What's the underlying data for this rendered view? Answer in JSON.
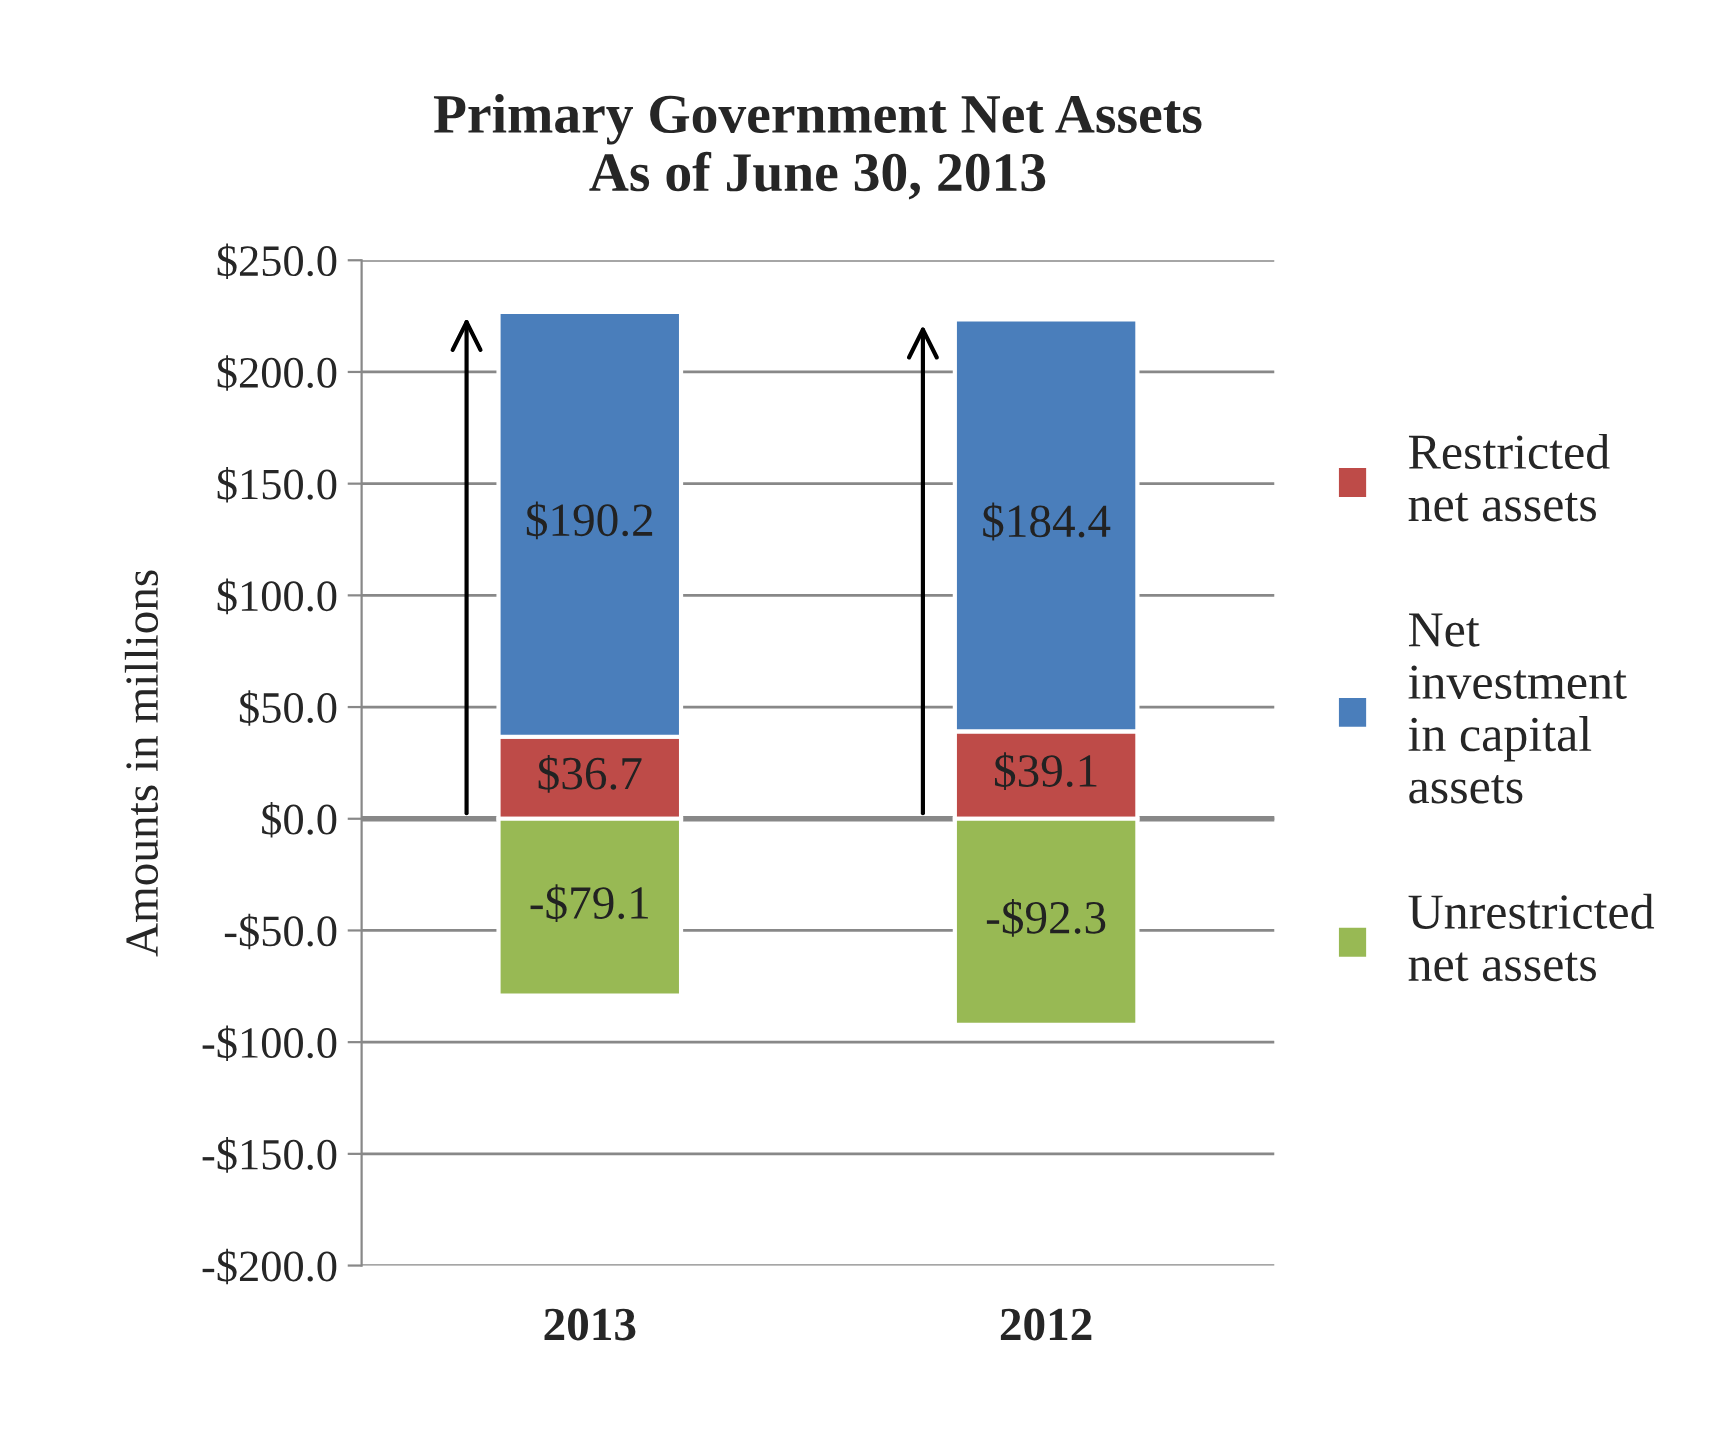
{
  "chart_data": {
    "type": "bar",
    "stacked": true,
    "title": "Primary Government Net Assets\nAs of June 30, 2013",
    "ylabel": "Amounts in millions",
    "categories": [
      "2013",
      "2012"
    ],
    "series": [
      {
        "name": "Restricted net assets",
        "color": "#be4b48",
        "values": [
          36.7,
          39.1
        ],
        "value_labels": [
          "$36.7",
          "$39.1"
        ]
      },
      {
        "name": "Net investment in capital assets",
        "color": "#4a7ebb",
        "values": [
          190.2,
          184.4
        ],
        "value_labels": [
          "$190.2",
          "$184.4"
        ]
      },
      {
        "name": "Unrestricted net assets",
        "color": "#98b954",
        "values": [
          -79.1,
          -92.3
        ],
        "value_labels": [
          "-$79.1",
          "-$92.3"
        ]
      }
    ],
    "ylim": [
      -200,
      250
    ],
    "yticks": [
      {
        "value": -200,
        "label": "-$200.0"
      },
      {
        "value": -150,
        "label": "-$150.0"
      },
      {
        "value": -100,
        "label": "-$100.0"
      },
      {
        "value": -50,
        "label": "-$50.0"
      },
      {
        "value": 0,
        "label": "$0.0"
      },
      {
        "value": 50,
        "label": "$50.0"
      },
      {
        "value": 100,
        "label": "$100.0"
      },
      {
        "value": 150,
        "label": "$150.0"
      },
      {
        "value": 200,
        "label": "$200.0"
      },
      {
        "value": 250,
        "label": "$250.0"
      }
    ],
    "grid": "y",
    "legend": "right"
  }
}
